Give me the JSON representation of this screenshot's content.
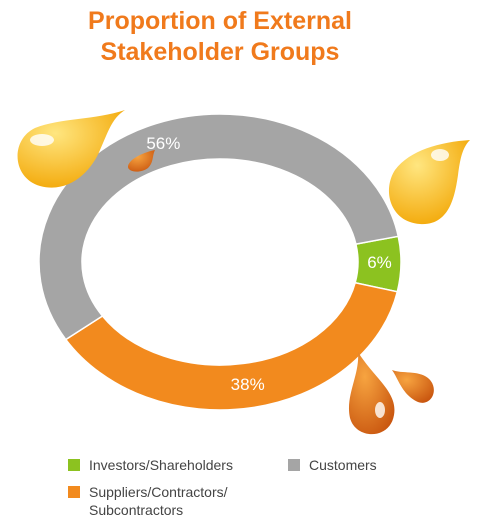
{
  "chart_data": {
    "type": "pie",
    "title": "Proportion of External Stakeholder Groups",
    "categories": [
      "Investors/Shareholders",
      "Suppliers/Contractors/ Subcontractors",
      "Customers"
    ],
    "values": [
      6,
      38,
      56
    ],
    "value_labels": [
      "6%",
      "38%",
      "56%"
    ],
    "colors": [
      "#8cc220",
      "#f28a1e",
      "#a5a5a5"
    ],
    "legend_order": [
      0,
      2,
      1
    ]
  }
}
